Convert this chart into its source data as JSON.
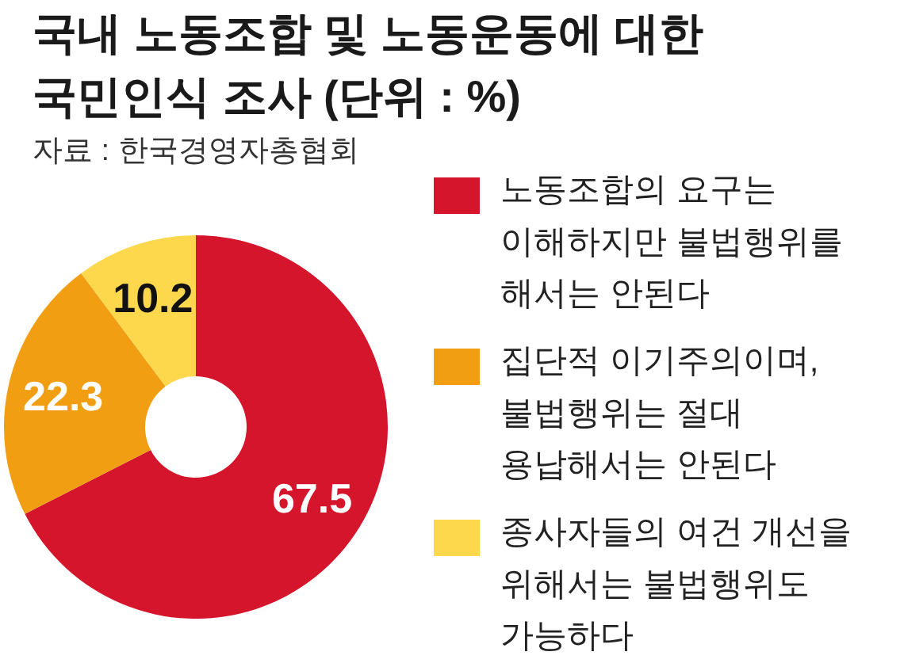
{
  "chart_data": {
    "type": "donut",
    "title": "국내 노동조합 및 노동운동에 대한\n국민인식 조사 (단위 : %)",
    "annotations": [
      "자료 : 한국경영자총협회"
    ],
    "categories": [
      "노동조합의 요구는\n이해하지만 불법행위를\n해서는 안된다",
      "집단적 이기주의이며,\n불법행위는 절대\n용납해서는 안된다",
      "종사자들의 여건 개선을\n위해서는 불법행위도\n가능하다"
    ],
    "values": [
      67.5,
      22.3,
      10.2
    ],
    "colors": [
      "#d5152b",
      "#f19e12",
      "#fdd84c"
    ],
    "data_labels": true,
    "legend": "right"
  }
}
